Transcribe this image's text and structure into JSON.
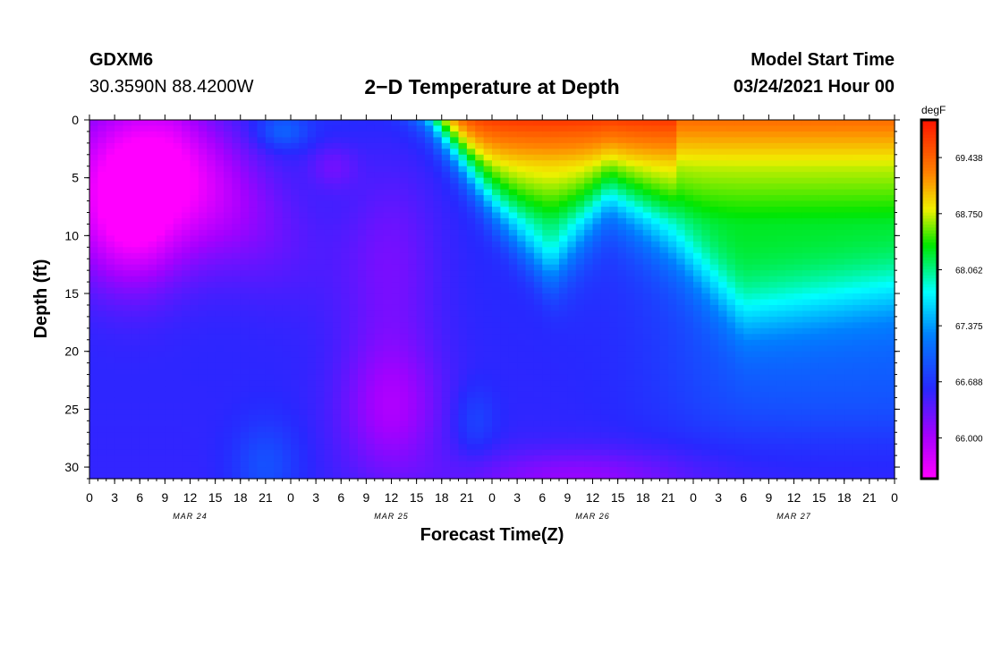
{
  "header": {
    "station": "GDXM6",
    "coordinates": "30.3590N 88.4200W",
    "title": "2−D Temperature at Depth",
    "model_start_label": "Model Start Time",
    "model_start_value": "03/24/2021 Hour 00"
  },
  "chart_data": {
    "type": "heatmap",
    "title": "2−D Temperature at Depth",
    "xlabel": "Forecast Time(Z)",
    "ylabel": "Depth (ft)",
    "x_range_hours": [
      0,
      96
    ],
    "ylim": [
      0,
      31
    ],
    "y_ticks": [
      0,
      5,
      10,
      15,
      20,
      25,
      30
    ],
    "x_tick_labels": [
      "0",
      "3",
      "6",
      "9",
      "12",
      "15",
      "18",
      "21",
      "0",
      "3",
      "6",
      "9",
      "12",
      "15",
      "18",
      "21",
      "0",
      "3",
      "6",
      "9",
      "12",
      "15",
      "18",
      "21",
      "0",
      "3",
      "6",
      "9",
      "12",
      "15",
      "18",
      "21",
      "0"
    ],
    "date_labels": [
      {
        "text": "MAR 24",
        "hour": 12
      },
      {
        "text": "MAR 25",
        "hour": 36
      },
      {
        "text": "MAR 26",
        "hour": 60
      },
      {
        "text": "MAR 27",
        "hour": 84
      }
    ],
    "colorbar": {
      "unit": "degF",
      "tick_labels": [
        "69.438",
        "68.750",
        "68.062",
        "67.375",
        "66.688",
        "66.000"
      ],
      "tick_values": [
        69.438,
        68.75,
        68.062,
        67.375,
        66.688,
        66.0
      ],
      "min": 65.5,
      "max": 69.9
    },
    "surface_warm_front_hours": [
      [
        0,
        40
      ],
      [
        10,
        48
      ],
      [
        20,
        58
      ],
      [
        30,
        62
      ]
    ],
    "warm_layer_bottom_ft": [
      {
        "hour": 40,
        "depth": 0
      },
      {
        "hour": 48,
        "depth": 8
      },
      {
        "hour": 55,
        "depth": 13
      },
      {
        "hour": 62,
        "depth": 7
      },
      {
        "hour": 70,
        "depth": 11
      },
      {
        "hour": 78,
        "depth": 17
      },
      {
        "hour": 96,
        "depth": 15
      }
    ],
    "cold_core": "approx. 65.6 degF near 3-15 ft, 0-24 hours, sinking to ~20 ft by hour 40",
    "bottom_values_degF": "approx. 66.1-66.9 at 25-31 ft"
  }
}
